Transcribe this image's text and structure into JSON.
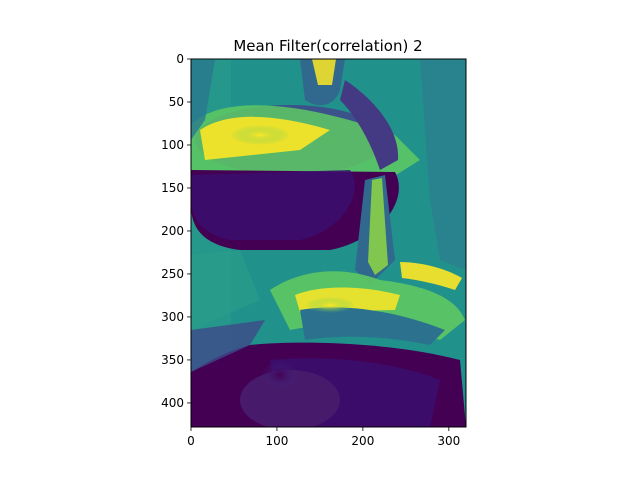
{
  "chart_data": {
    "type": "heatmap",
    "title": "Mean Filter(correlation) 2",
    "xlabel": "",
    "ylabel": "",
    "colormap": "viridis",
    "image_width": 320,
    "image_height": 428,
    "xlim": [
      0,
      320
    ],
    "ylim": [
      428,
      0
    ],
    "xticks": [
      0,
      100,
      200,
      300
    ],
    "yticks": [
      0,
      50,
      100,
      150,
      200,
      250,
      300,
      350,
      400
    ],
    "grid": false,
    "colors": {
      "low": "#440154",
      "mid": "#21918c",
      "high": "#fde725"
    }
  }
}
